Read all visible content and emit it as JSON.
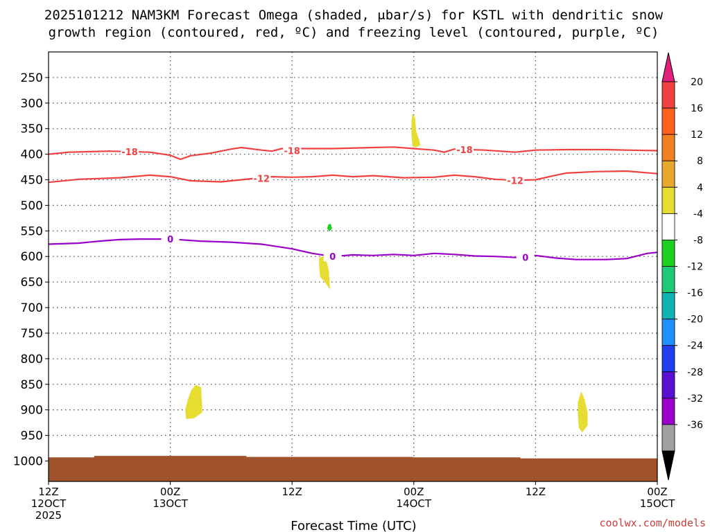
{
  "title": {
    "line1": "2025101212 NAM3KM Forecast Omega (shaded, μbar/s) for KSTL with dendritic snow",
    "line2": "growth region (contoured, red, ºC) and freezing level (contoured, purple, ºC)"
  },
  "credit": "coolwx.com/models",
  "colors": {
    "red_contour": "#f04040",
    "purple_contour": "#9a00c8",
    "ground": "#a0522d",
    "shade_yellow": "#e6dc32",
    "shade_green": "#20d020",
    "grid": "#555555"
  },
  "chart_data": {
    "type": "time-height",
    "x_range_hours": [
      0,
      60
    ],
    "y_range_mb": [
      200,
      1040
    ],
    "xlabel": "Forecast Time (UTC)",
    "x_ticks": [
      {
        "hour": 0,
        "l1": "12Z",
        "l2": "12OCT",
        "l3": "2025"
      },
      {
        "hour": 12,
        "l1": "00Z",
        "l2": "13OCT",
        "l3": ""
      },
      {
        "hour": 24,
        "l1": "12Z",
        "l2": "",
        "l3": ""
      },
      {
        "hour": 36,
        "l1": "00Z",
        "l2": "14OCT",
        "l3": ""
      },
      {
        "hour": 48,
        "l1": "12Z",
        "l2": "",
        "l3": ""
      },
      {
        "hour": 60,
        "l1": "00Z",
        "l2": "15OCT",
        "l3": ""
      }
    ],
    "y_ticks": [
      {
        "mb": 250,
        "label": "250"
      },
      {
        "mb": 300,
        "label": "300"
      },
      {
        "mb": 350,
        "label": "350"
      },
      {
        "mb": 400,
        "label": "400"
      },
      {
        "mb": 450,
        "label": "450"
      },
      {
        "mb": 500,
        "label": "500"
      },
      {
        "mb": 550,
        "label": "550"
      },
      {
        "mb": 600,
        "label": "600"
      },
      {
        "mb": 650,
        "label": "650"
      },
      {
        "mb": 700,
        "label": "700"
      },
      {
        "mb": 750,
        "label": "750"
      },
      {
        "mb": 800,
        "label": "800"
      },
      {
        "mb": 850,
        "label": "850"
      },
      {
        "mb": 900,
        "label": "900"
      },
      {
        "mb": 950,
        "label": "950"
      },
      {
        "mb": 1000,
        "label": "1000"
      }
    ],
    "contours": [
      {
        "name": "minus18",
        "label": "-18",
        "color": "#f04040",
        "points": [
          [
            0,
            400
          ],
          [
            2,
            396
          ],
          [
            6,
            394
          ],
          [
            10,
            396
          ],
          [
            12,
            402
          ],
          [
            13,
            410
          ],
          [
            14,
            403
          ],
          [
            16,
            398
          ],
          [
            18,
            390
          ],
          [
            19,
            387
          ],
          [
            21,
            392
          ],
          [
            22,
            394
          ],
          [
            23,
            389
          ],
          [
            26,
            389
          ],
          [
            28,
            389
          ],
          [
            32,
            387
          ],
          [
            34,
            386
          ],
          [
            36,
            389
          ],
          [
            38,
            392
          ],
          [
            39,
            396
          ],
          [
            40,
            390
          ],
          [
            43,
            392
          ],
          [
            46,
            396
          ],
          [
            48,
            392
          ],
          [
            51,
            391
          ],
          [
            55,
            391
          ],
          [
            57,
            392
          ],
          [
            60,
            393
          ]
        ],
        "labels": [
          [
            8,
            395
          ],
          [
            24,
            393
          ],
          [
            41,
            391
          ]
        ]
      },
      {
        "name": "minus12",
        "label": "-12",
        "color": "#f04040",
        "points": [
          [
            0,
            455
          ],
          [
            3,
            449
          ],
          [
            7,
            446
          ],
          [
            10,
            441
          ],
          [
            12,
            444
          ],
          [
            14,
            452
          ],
          [
            17,
            454
          ],
          [
            20,
            448
          ],
          [
            22,
            444
          ],
          [
            24,
            445
          ],
          [
            26,
            444
          ],
          [
            28,
            441
          ],
          [
            30,
            444
          ],
          [
            32,
            442
          ],
          [
            35,
            446
          ],
          [
            38,
            445
          ],
          [
            40,
            441
          ],
          [
            42,
            444
          ],
          [
            44,
            449
          ],
          [
            46,
            451
          ],
          [
            48,
            450
          ],
          [
            50,
            441
          ],
          [
            51,
            437
          ],
          [
            54,
            434
          ],
          [
            57,
            433
          ],
          [
            60,
            438
          ]
        ],
        "labels": [
          [
            21,
            447
          ],
          [
            46,
            451
          ]
        ]
      },
      {
        "name": "freezing",
        "label": "0",
        "color": "#9a00c8",
        "points": [
          [
            0,
            576
          ],
          [
            3,
            574
          ],
          [
            5,
            570
          ],
          [
            7,
            567
          ],
          [
            9,
            566
          ],
          [
            12,
            566
          ],
          [
            15,
            570
          ],
          [
            18,
            572
          ],
          [
            21,
            576
          ],
          [
            24,
            585
          ],
          [
            26,
            594
          ],
          [
            28,
            600
          ],
          [
            30,
            597
          ],
          [
            32,
            598
          ],
          [
            34,
            596
          ],
          [
            36,
            598
          ],
          [
            38,
            594
          ],
          [
            40,
            596
          ],
          [
            42,
            599
          ],
          [
            44,
            600
          ],
          [
            46,
            602
          ],
          [
            48,
            598
          ],
          [
            50,
            603
          ],
          [
            52,
            606
          ],
          [
            55,
            606
          ],
          [
            57,
            604
          ],
          [
            59,
            594
          ],
          [
            60,
            592
          ]
        ],
        "labels": [
          [
            12,
            566
          ],
          [
            28,
            600
          ],
          [
            47,
            602
          ]
        ]
      }
    ],
    "shaded_regions": [
      {
        "name": "omega-plus4-upper",
        "fill": "#e6dc32",
        "range": "4 to 8",
        "points": [
          [
            35.9,
            322
          ],
          [
            36.1,
            330
          ],
          [
            36.2,
            355
          ],
          [
            36.5,
            372
          ],
          [
            36.6,
            382
          ],
          [
            36.2,
            386
          ],
          [
            35.9,
            384
          ],
          [
            35.8,
            360
          ],
          [
            35.8,
            335
          ]
        ]
      },
      {
        "name": "omega-minus4-mid",
        "fill": "#20d020",
        "range": "-8 to -4",
        "points": [
          [
            27.6,
            538
          ],
          [
            27.8,
            537
          ],
          [
            27.9,
            545
          ],
          [
            27.7,
            550
          ],
          [
            27.5,
            545
          ]
        ]
      },
      {
        "name": "omega-plus4-mid",
        "fill": "#e6dc32",
        "range": "4 to 8",
        "points": [
          [
            27.1,
            600
          ],
          [
            27.3,
            605
          ],
          [
            27.6,
            628
          ],
          [
            27.7,
            662
          ],
          [
            27.2,
            648
          ],
          [
            26.8,
            640
          ],
          [
            26.7,
            620
          ],
          [
            26.7,
            603
          ]
        ]
      },
      {
        "name": "omega-plus4-low-left",
        "fill": "#e6dc32",
        "range": "4 to 8",
        "points": [
          [
            14.5,
            852
          ],
          [
            15.0,
            856
          ],
          [
            15.1,
            890
          ],
          [
            15.1,
            905
          ],
          [
            14.3,
            916
          ],
          [
            13.6,
            917
          ],
          [
            13.5,
            900
          ],
          [
            13.8,
            878
          ],
          [
            14.1,
            862
          ]
        ]
      },
      {
        "name": "omega-plus4-low-right",
        "fill": "#e6dc32",
        "range": "4 to 8",
        "points": [
          [
            52.5,
            866
          ],
          [
            52.8,
            880
          ],
          [
            53.1,
            905
          ],
          [
            53.1,
            930
          ],
          [
            52.6,
            943
          ],
          [
            52.3,
            935
          ],
          [
            52.2,
            910
          ],
          [
            52.2,
            885
          ]
        ]
      }
    ],
    "ground_surface": [
      [
        0,
        993
      ],
      [
        4.5,
        993
      ],
      [
        4.5,
        990
      ],
      [
        19.5,
        990
      ],
      [
        19.5,
        992
      ],
      [
        35.9,
        992
      ],
      [
        35.9,
        993
      ],
      [
        46.5,
        993
      ],
      [
        46.5,
        995
      ],
      [
        60,
        995
      ]
    ],
    "colorbar": {
      "labels": [
        "20",
        "16",
        "12",
        "8",
        "4",
        "-4",
        "-8",
        "-12",
        "-16",
        "-20",
        "-24",
        "-28",
        "-32",
        "-36"
      ],
      "colors": [
        "#f04040",
        "#ff6020",
        "#f08020",
        "#e8a830",
        "#e6dc32",
        "#ffffff",
        "#20d020",
        "#20c878",
        "#10b4b4",
        "#1e90ff",
        "#2040f0",
        "#5a10d0",
        "#9a00c8",
        "#a0a0a0"
      ],
      "top_arrow_color": "#e0207a",
      "bottom_arrow_color": "#000000"
    }
  }
}
